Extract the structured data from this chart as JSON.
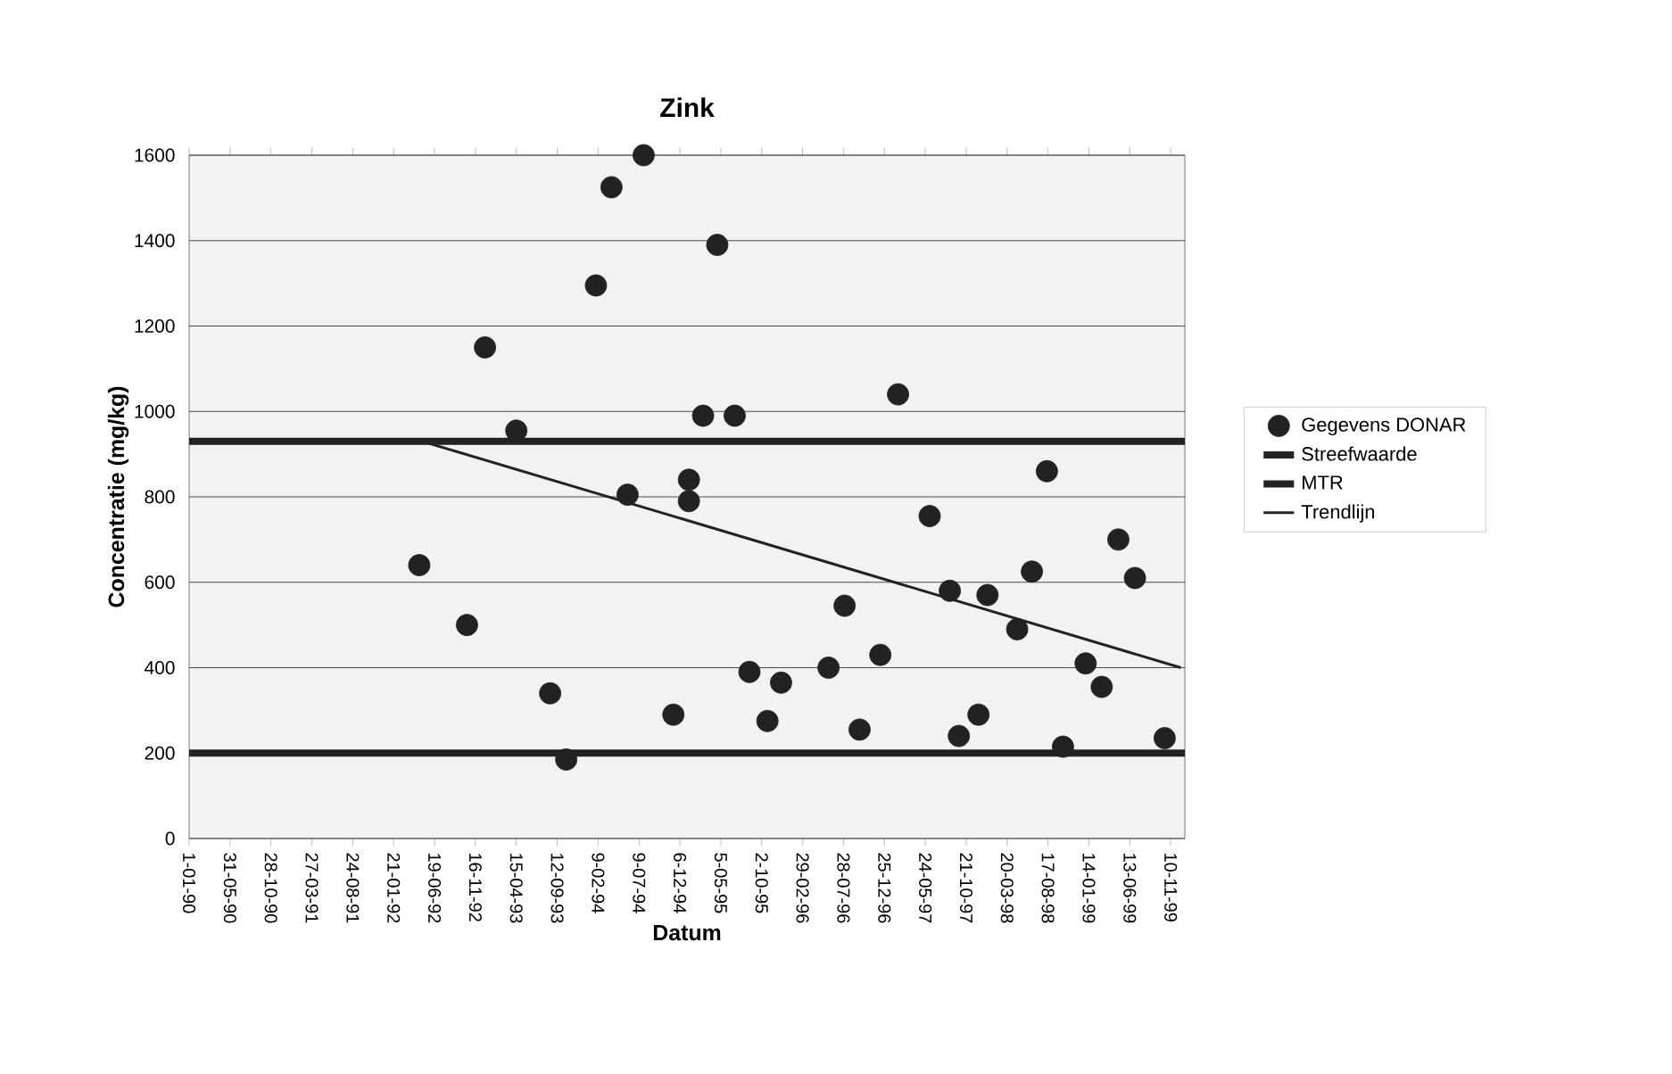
{
  "chart_data": {
    "type": "scatter",
    "title": "Zink",
    "xlabel": "Datum",
    "ylabel": "Concentratie (mg/kg)",
    "xlim": [
      "1990-01-01",
      "2000-01-01"
    ],
    "ylim": [
      0,
      1600
    ],
    "xticks": [
      {
        "value": "1990-01-01",
        "label": "1-01-90"
      },
      {
        "value": "1990-05-31",
        "label": "31-05-90"
      },
      {
        "value": "1990-10-28",
        "label": "28-10-90"
      },
      {
        "value": "1991-03-27",
        "label": "27-03-91"
      },
      {
        "value": "1991-08-24",
        "label": "24-08-91"
      },
      {
        "value": "1992-01-21",
        "label": "21-01-92"
      },
      {
        "value": "1992-06-19",
        "label": "19-06-92"
      },
      {
        "value": "1992-11-16",
        "label": "16-11-92"
      },
      {
        "value": "1993-04-15",
        "label": "15-04-93"
      },
      {
        "value": "1993-09-12",
        "label": "12-09-93"
      },
      {
        "value": "1994-02-09",
        "label": "9-02-94"
      },
      {
        "value": "1994-07-09",
        "label": "9-07-94"
      },
      {
        "value": "1994-12-06",
        "label": "6-12-94"
      },
      {
        "value": "1995-05-05",
        "label": "5-05-95"
      },
      {
        "value": "1995-10-02",
        "label": "2-10-95"
      },
      {
        "value": "1996-02-29",
        "label": "29-02-96"
      },
      {
        "value": "1996-07-28",
        "label": "28-07-96"
      },
      {
        "value": "1996-12-25",
        "label": "25-12-96"
      },
      {
        "value": "1997-05-24",
        "label": "24-05-97"
      },
      {
        "value": "1997-10-21",
        "label": "21-10-97"
      },
      {
        "value": "1998-03-20",
        "label": "20-03-98"
      },
      {
        "value": "1998-08-17",
        "label": "17-08-98"
      },
      {
        "value": "1999-01-14",
        "label": "14-01-99"
      },
      {
        "value": "1999-06-13",
        "label": "13-06-99"
      },
      {
        "value": "1999-11-10",
        "label": "10-11-99"
      }
    ],
    "yticks": [
      0,
      200,
      400,
      600,
      800,
      1000,
      1200,
      1400,
      1600
    ],
    "grid": "y",
    "legend": "right",
    "series": [
      {
        "name": "Gegevens DONAR",
        "marker": "circle",
        "color": "#222222",
        "x": [
          "1992-04-24",
          "1992-10-16",
          "1992-12-21",
          "1993-04-15",
          "1993-08-17",
          "1993-10-15",
          "1994-02-01",
          "1994-03-30",
          "1994-05-28",
          "1994-07-26",
          "1994-11-12",
          "1995-01-08",
          "1995-01-08",
          "1995-03-01",
          "1995-04-22",
          "1995-06-25",
          "1995-08-18",
          "1995-10-23",
          "1995-12-12",
          "1996-06-03",
          "1996-08-01",
          "1996-09-25",
          "1996-12-10",
          "1997-02-13",
          "1997-06-09",
          "1997-08-22",
          "1997-09-24",
          "1997-12-05",
          "1998-01-07",
          "1998-04-26",
          "1998-06-19",
          "1998-08-13",
          "1998-10-11",
          "1999-01-02",
          "1999-03-02",
          "1999-05-02",
          "1999-07-02",
          "1999-10-19"
        ],
        "values": [
          640,
          500,
          1150,
          955,
          340,
          185,
          1295,
          1525,
          805,
          1600,
          290,
          840,
          790,
          990,
          1390,
          990,
          390,
          275,
          365,
          400,
          545,
          255,
          430,
          1040,
          755,
          580,
          240,
          290,
          570,
          490,
          625,
          860,
          215,
          410,
          355,
          700,
          610,
          235
        ]
      },
      {
        "name": "Trendlijn",
        "type": "line",
        "color": "#222222",
        "x": [
          "1992-05-05",
          "1999-12-17"
        ],
        "values": [
          930,
          400
        ]
      }
    ],
    "ref_lines": [
      {
        "axis": "y",
        "value": 200,
        "label": "Streefwaarde",
        "color": "#222222"
      },
      {
        "axis": "y",
        "value": 930,
        "label": "MTR",
        "color": "#222222"
      }
    ]
  }
}
